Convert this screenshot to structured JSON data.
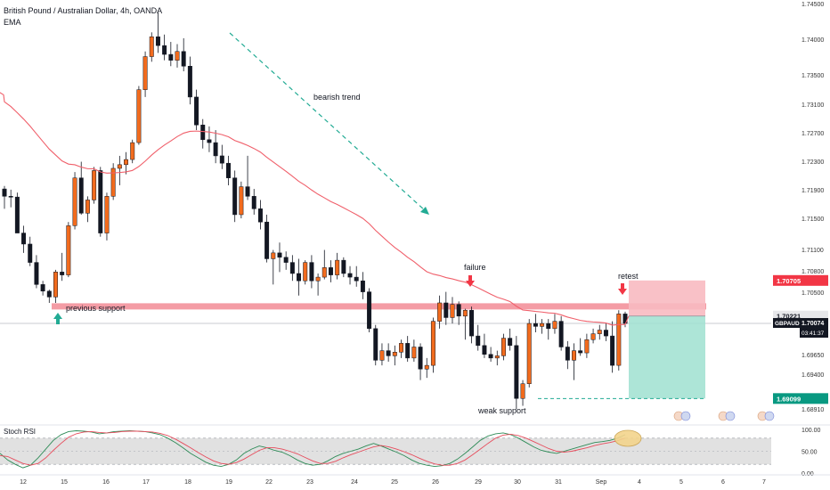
{
  "header": {
    "symbol_title": "British Pound / Australian Dollar, 4h, OANDA",
    "indicator": "EMA"
  },
  "colors": {
    "up": "#f26b1d",
    "down": "#131722",
    "ema": "#f0606b",
    "support_band": "#f28b95",
    "stop_zone": "#f8bac1",
    "target_zone": "#9fe0d0",
    "accent_teal": "#22ab94",
    "accent_red": "#f23645",
    "stoch_k": "#2e8b57",
    "stoch_d": "#e74c5c"
  },
  "chart_data": [
    {
      "type": "candlestick",
      "title": "British Pound / Australian Dollar, 4h, OANDA",
      "symbol": "GBPAUD",
      "ylim": [
        1.687,
        1.745
      ],
      "y_ticks": [
        "1.74500",
        "1.74000",
        "1.73500",
        "1.73100",
        "1.72700",
        "1.72300",
        "1.71900",
        "1.71500",
        "1.71100",
        "1.70800",
        "1.70500",
        "1.69650",
        "1.69400",
        "1.68910"
      ],
      "x_ticks": [
        "12",
        "15",
        "16",
        "17",
        "18",
        "19",
        "22",
        "23",
        "24",
        "25",
        "26",
        "29",
        "30",
        "31",
        "Sep",
        "4",
        "5",
        "6",
        "7"
      ],
      "candles": [
        {
          "o": 1.7195,
          "h": 1.7199,
          "l": 1.7168,
          "c": 1.7185
        },
        {
          "o": 1.7185,
          "h": 1.7194,
          "l": 1.717,
          "c": 1.7184
        },
        {
          "o": 1.7184,
          "h": 1.719,
          "l": 1.714,
          "c": 1.7135
        },
        {
          "o": 1.7135,
          "h": 1.7145,
          "l": 1.7108,
          "c": 1.712
        },
        {
          "o": 1.712,
          "h": 1.713,
          "l": 1.709,
          "c": 1.7095
        },
        {
          "o": 1.7095,
          "h": 1.7105,
          "l": 1.706,
          "c": 1.7065
        },
        {
          "o": 1.7065,
          "h": 1.707,
          "l": 1.705,
          "c": 1.7056
        },
        {
          "o": 1.7056,
          "h": 1.7058,
          "l": 1.704,
          "c": 1.7048
        },
        {
          "o": 1.7048,
          "h": 1.7085,
          "l": 1.704,
          "c": 1.7082
        },
        {
          "o": 1.7082,
          "h": 1.7108,
          "l": 1.707,
          "c": 1.7078
        },
        {
          "o": 1.7078,
          "h": 1.715,
          "l": 1.7075,
          "c": 1.7145
        },
        {
          "o": 1.7145,
          "h": 1.7218,
          "l": 1.714,
          "c": 1.721
        },
        {
          "o": 1.721,
          "h": 1.7232,
          "l": 1.716,
          "c": 1.7162
        },
        {
          "o": 1.7162,
          "h": 1.7185,
          "l": 1.715,
          "c": 1.718
        },
        {
          "o": 1.718,
          "h": 1.7225,
          "l": 1.7175,
          "c": 1.722
        },
        {
          "o": 1.722,
          "h": 1.7225,
          "l": 1.713,
          "c": 1.7135
        },
        {
          "o": 1.7135,
          "h": 1.719,
          "l": 1.7125,
          "c": 1.7185
        },
        {
          "o": 1.7185,
          "h": 1.723,
          "l": 1.718,
          "c": 1.7223
        },
        {
          "o": 1.7223,
          "h": 1.724,
          "l": 1.72,
          "c": 1.7228
        },
        {
          "o": 1.7228,
          "h": 1.7245,
          "l": 1.7215,
          "c": 1.7235
        },
        {
          "o": 1.7235,
          "h": 1.7262,
          "l": 1.723,
          "c": 1.7258
        },
        {
          "o": 1.7258,
          "h": 1.7335,
          "l": 1.7255,
          "c": 1.733
        },
        {
          "o": 1.733,
          "h": 1.7382,
          "l": 1.732,
          "c": 1.7375
        },
        {
          "o": 1.7375,
          "h": 1.7408,
          "l": 1.7368,
          "c": 1.7402
        },
        {
          "o": 1.7402,
          "h": 1.7435,
          "l": 1.738,
          "c": 1.739
        },
        {
          "o": 1.739,
          "h": 1.7405,
          "l": 1.737,
          "c": 1.7378
        },
        {
          "o": 1.7378,
          "h": 1.7395,
          "l": 1.7362,
          "c": 1.737
        },
        {
          "o": 1.737,
          "h": 1.7392,
          "l": 1.736,
          "c": 1.7382
        },
        {
          "o": 1.7382,
          "h": 1.74,
          "l": 1.7355,
          "c": 1.7362
        },
        {
          "o": 1.7362,
          "h": 1.7375,
          "l": 1.731,
          "c": 1.732
        },
        {
          "o": 1.732,
          "h": 1.733,
          "l": 1.7275,
          "c": 1.7282
        },
        {
          "o": 1.7282,
          "h": 1.729,
          "l": 1.725,
          "c": 1.7262
        },
        {
          "o": 1.7262,
          "h": 1.728,
          "l": 1.7245,
          "c": 1.7258
        },
        {
          "o": 1.7258,
          "h": 1.7275,
          "l": 1.723,
          "c": 1.724
        },
        {
          "o": 1.724,
          "h": 1.7255,
          "l": 1.7222,
          "c": 1.723
        },
        {
          "o": 1.723,
          "h": 1.724,
          "l": 1.72,
          "c": 1.721
        },
        {
          "o": 1.721,
          "h": 1.722,
          "l": 1.715,
          "c": 1.716
        },
        {
          "o": 1.716,
          "h": 1.7205,
          "l": 1.7155,
          "c": 1.7198
        },
        {
          "o": 1.7198,
          "h": 1.724,
          "l": 1.718,
          "c": 1.7185
        },
        {
          "o": 1.7185,
          "h": 1.7195,
          "l": 1.716,
          "c": 1.7168
        },
        {
          "o": 1.7168,
          "h": 1.718,
          "l": 1.714,
          "c": 1.715
        },
        {
          "o": 1.715,
          "h": 1.716,
          "l": 1.7095,
          "c": 1.71
        },
        {
          "o": 1.71,
          "h": 1.7112,
          "l": 1.7065,
          "c": 1.7108
        },
        {
          "o": 1.7108,
          "h": 1.7122,
          "l": 1.7082,
          "c": 1.7102
        },
        {
          "o": 1.7102,
          "h": 1.711,
          "l": 1.7085,
          "c": 1.7095
        },
        {
          "o": 1.7095,
          "h": 1.7105,
          "l": 1.707,
          "c": 1.708
        },
        {
          "o": 1.708,
          "h": 1.71,
          "l": 1.705,
          "c": 1.707
        },
        {
          "o": 1.707,
          "h": 1.7098,
          "l": 1.7065,
          "c": 1.7095
        },
        {
          "o": 1.7095,
          "h": 1.7105,
          "l": 1.706,
          "c": 1.707
        },
        {
          "o": 1.707,
          "h": 1.708,
          "l": 1.705,
          "c": 1.7075
        },
        {
          "o": 1.7075,
          "h": 1.7112,
          "l": 1.7072,
          "c": 1.7088
        },
        {
          "o": 1.7088,
          "h": 1.7098,
          "l": 1.7068,
          "c": 1.7078
        },
        {
          "o": 1.7078,
          "h": 1.7108,
          "l": 1.7072,
          "c": 1.7098
        },
        {
          "o": 1.7098,
          "h": 1.7102,
          "l": 1.7075,
          "c": 1.708
        },
        {
          "o": 1.708,
          "h": 1.709,
          "l": 1.7065,
          "c": 1.7075
        },
        {
          "o": 1.7075,
          "h": 1.709,
          "l": 1.7062,
          "c": 1.707
        },
        {
          "o": 1.707,
          "h": 1.7082,
          "l": 1.7045,
          "c": 1.7055
        },
        {
          "o": 1.7055,
          "h": 1.706,
          "l": 1.7,
          "c": 1.7005
        },
        {
          "o": 1.7005,
          "h": 1.701,
          "l": 1.6955,
          "c": 1.6962
        },
        {
          "o": 1.6962,
          "h": 1.6985,
          "l": 1.6955,
          "c": 1.6975
        },
        {
          "o": 1.6975,
          "h": 1.6985,
          "l": 1.696,
          "c": 1.6968
        },
        {
          "o": 1.6968,
          "h": 1.6982,
          "l": 1.6955,
          "c": 1.6973
        },
        {
          "o": 1.6973,
          "h": 1.699,
          "l": 1.6965,
          "c": 1.6985
        },
        {
          "o": 1.6985,
          "h": 1.6995,
          "l": 1.696,
          "c": 1.6965
        },
        {
          "o": 1.6965,
          "h": 1.699,
          "l": 1.696,
          "c": 1.698
        },
        {
          "o": 1.698,
          "h": 1.6985,
          "l": 1.6935,
          "c": 1.695
        },
        {
          "o": 1.695,
          "h": 1.6965,
          "l": 1.6938,
          "c": 1.6955
        },
        {
          "o": 1.6955,
          "h": 1.702,
          "l": 1.6945,
          "c": 1.7015
        },
        {
          "o": 1.7015,
          "h": 1.705,
          "l": 1.7005,
          "c": 1.704
        },
        {
          "o": 1.704,
          "h": 1.7055,
          "l": 1.701,
          "c": 1.702
        },
        {
          "o": 1.702,
          "h": 1.7048,
          "l": 1.7012,
          "c": 1.7038
        },
        {
          "o": 1.7038,
          "h": 1.7042,
          "l": 1.701,
          "c": 1.7022
        },
        {
          "o": 1.7022,
          "h": 1.7032,
          "l": 1.699,
          "c": 1.703
        },
        {
          "o": 1.703,
          "h": 1.7035,
          "l": 1.6985,
          "c": 1.6995
        },
        {
          "o": 1.6995,
          "h": 1.701,
          "l": 1.6975,
          "c": 1.6982
        },
        {
          "o": 1.6982,
          "h": 1.6998,
          "l": 1.6965,
          "c": 1.697
        },
        {
          "o": 1.697,
          "h": 1.698,
          "l": 1.696,
          "c": 1.6965
        },
        {
          "o": 1.6965,
          "h": 1.6975,
          "l": 1.6955,
          "c": 1.6968
        },
        {
          "o": 1.6968,
          "h": 1.6998,
          "l": 1.6962,
          "c": 1.6992
        },
        {
          "o": 1.6992,
          "h": 1.7005,
          "l": 1.6975,
          "c": 1.6982
        },
        {
          "o": 1.6982,
          "h": 1.6995,
          "l": 1.6895,
          "c": 1.691
        },
        {
          "o": 1.691,
          "h": 1.6935,
          "l": 1.69,
          "c": 1.693
        },
        {
          "o": 1.693,
          "h": 1.7018,
          "l": 1.6925,
          "c": 1.7012
        },
        {
          "o": 1.7012,
          "h": 1.7025,
          "l": 1.7,
          "c": 1.7008
        },
        {
          "o": 1.7008,
          "h": 1.7018,
          "l": 1.6998,
          "c": 1.7012
        },
        {
          "o": 1.7012,
          "h": 1.7018,
          "l": 1.699,
          "c": 1.7005
        },
        {
          "o": 1.7005,
          "h": 1.7025,
          "l": 1.6998,
          "c": 1.7015
        },
        {
          "o": 1.7015,
          "h": 1.7022,
          "l": 1.6975,
          "c": 1.698
        },
        {
          "o": 1.698,
          "h": 1.6988,
          "l": 1.695,
          "c": 1.6962
        },
        {
          "o": 1.6962,
          "h": 1.6985,
          "l": 1.6935,
          "c": 1.6975
        },
        {
          "o": 1.6975,
          "h": 1.6992,
          "l": 1.6968,
          "c": 1.6972
        },
        {
          "o": 1.6972,
          "h": 1.6998,
          "l": 1.6965,
          "c": 1.699
        },
        {
          "o": 1.699,
          "h": 1.7005,
          "l": 1.6985,
          "c": 1.6998
        },
        {
          "o": 1.6998,
          "h": 1.701,
          "l": 1.699,
          "c": 1.7003
        },
        {
          "o": 1.7003,
          "h": 1.7012,
          "l": 1.6988,
          "c": 1.6995
        },
        {
          "o": 1.6995,
          "h": 1.7015,
          "l": 1.6945,
          "c": 1.6955
        },
        {
          "o": 1.6955,
          "h": 1.703,
          "l": 1.6948,
          "c": 1.7025
        },
        {
          "o": 1.7025,
          "h": 1.7028,
          "l": 1.7007,
          "c": 1.7012
        }
      ],
      "ema": {
        "label": "EMA",
        "start": 1.732,
        "end": 1.7022
      },
      "annotations": {
        "support_band": {
          "low": 1.70335,
          "high": 1.70395
        },
        "previous_support_label": "previous support",
        "bearish_trend_label": "bearish trend",
        "failure_label": "failure",
        "retest_label": "retest",
        "weak_support_label": "weak support",
        "weak_support_level": 1.69099
      },
      "position": {
        "entry": 1.70221,
        "stop": 1.70705,
        "target": 1.69099
      },
      "price_labels": {
        "stop": "1.70705",
        "entry": "1.70221",
        "current": "1.70074",
        "symbol": "GBPAUD",
        "countdown": "03:41:37",
        "target": "1.69099"
      }
    },
    {
      "type": "line",
      "title": "Stoch RSI",
      "ylim": [
        0,
        100
      ],
      "y_ticks": [
        "100.00",
        "50.00",
        "0.00"
      ],
      "band": [
        20,
        80
      ],
      "series": [
        {
          "values": [
            45,
            30,
            20,
            12,
            18,
            35,
            55,
            75,
            88,
            95,
            97,
            96,
            94,
            90,
            92,
            95,
            96,
            97,
            96,
            95,
            92,
            88,
            80,
            70,
            58,
            45,
            35,
            25,
            18,
            15,
            20,
            30,
            45,
            55,
            62,
            58,
            52,
            48,
            40,
            30,
            22,
            18,
            20,
            28,
            38,
            45,
            50,
            55,
            62,
            68,
            62,
            55,
            48,
            40,
            30,
            22,
            18,
            15,
            17,
            22,
            32,
            45,
            60,
            75,
            85,
            90,
            92,
            88,
            80,
            70,
            60,
            52,
            48,
            45,
            50,
            55,
            60,
            65,
            70,
            72,
            75,
            80,
            88
          ]
        },
        {
          "values": [
            40,
            38,
            30,
            22,
            18,
            22,
            35,
            52,
            68,
            82,
            90,
            94,
            95,
            93,
            92,
            93,
            95,
            96,
            96,
            95,
            94,
            91,
            86,
            78,
            68,
            58,
            47,
            37,
            28,
            22,
            20,
            24,
            32,
            42,
            52,
            58,
            58,
            55,
            50,
            44,
            36,
            28,
            22,
            22,
            27,
            35,
            42,
            48,
            54,
            60,
            63,
            60,
            55,
            49,
            42,
            34,
            27,
            21,
            18,
            18,
            22,
            30,
            42,
            55,
            68,
            80,
            87,
            89,
            86,
            80,
            72,
            64,
            56,
            50,
            48,
            50,
            54,
            58,
            63,
            67,
            70,
            74,
            80
          ]
        }
      ]
    }
  ],
  "stoch_panel": {
    "title": "Stoch RSI",
    "y_labels": [
      "100.00",
      "50.00",
      "0.00"
    ]
  },
  "events": {
    "icons": [
      "flag-event-icon",
      "flag-event-icon",
      "flag-event-icon",
      "flag-event-icon",
      "flag-event-icon",
      "flag-event-icon"
    ]
  }
}
